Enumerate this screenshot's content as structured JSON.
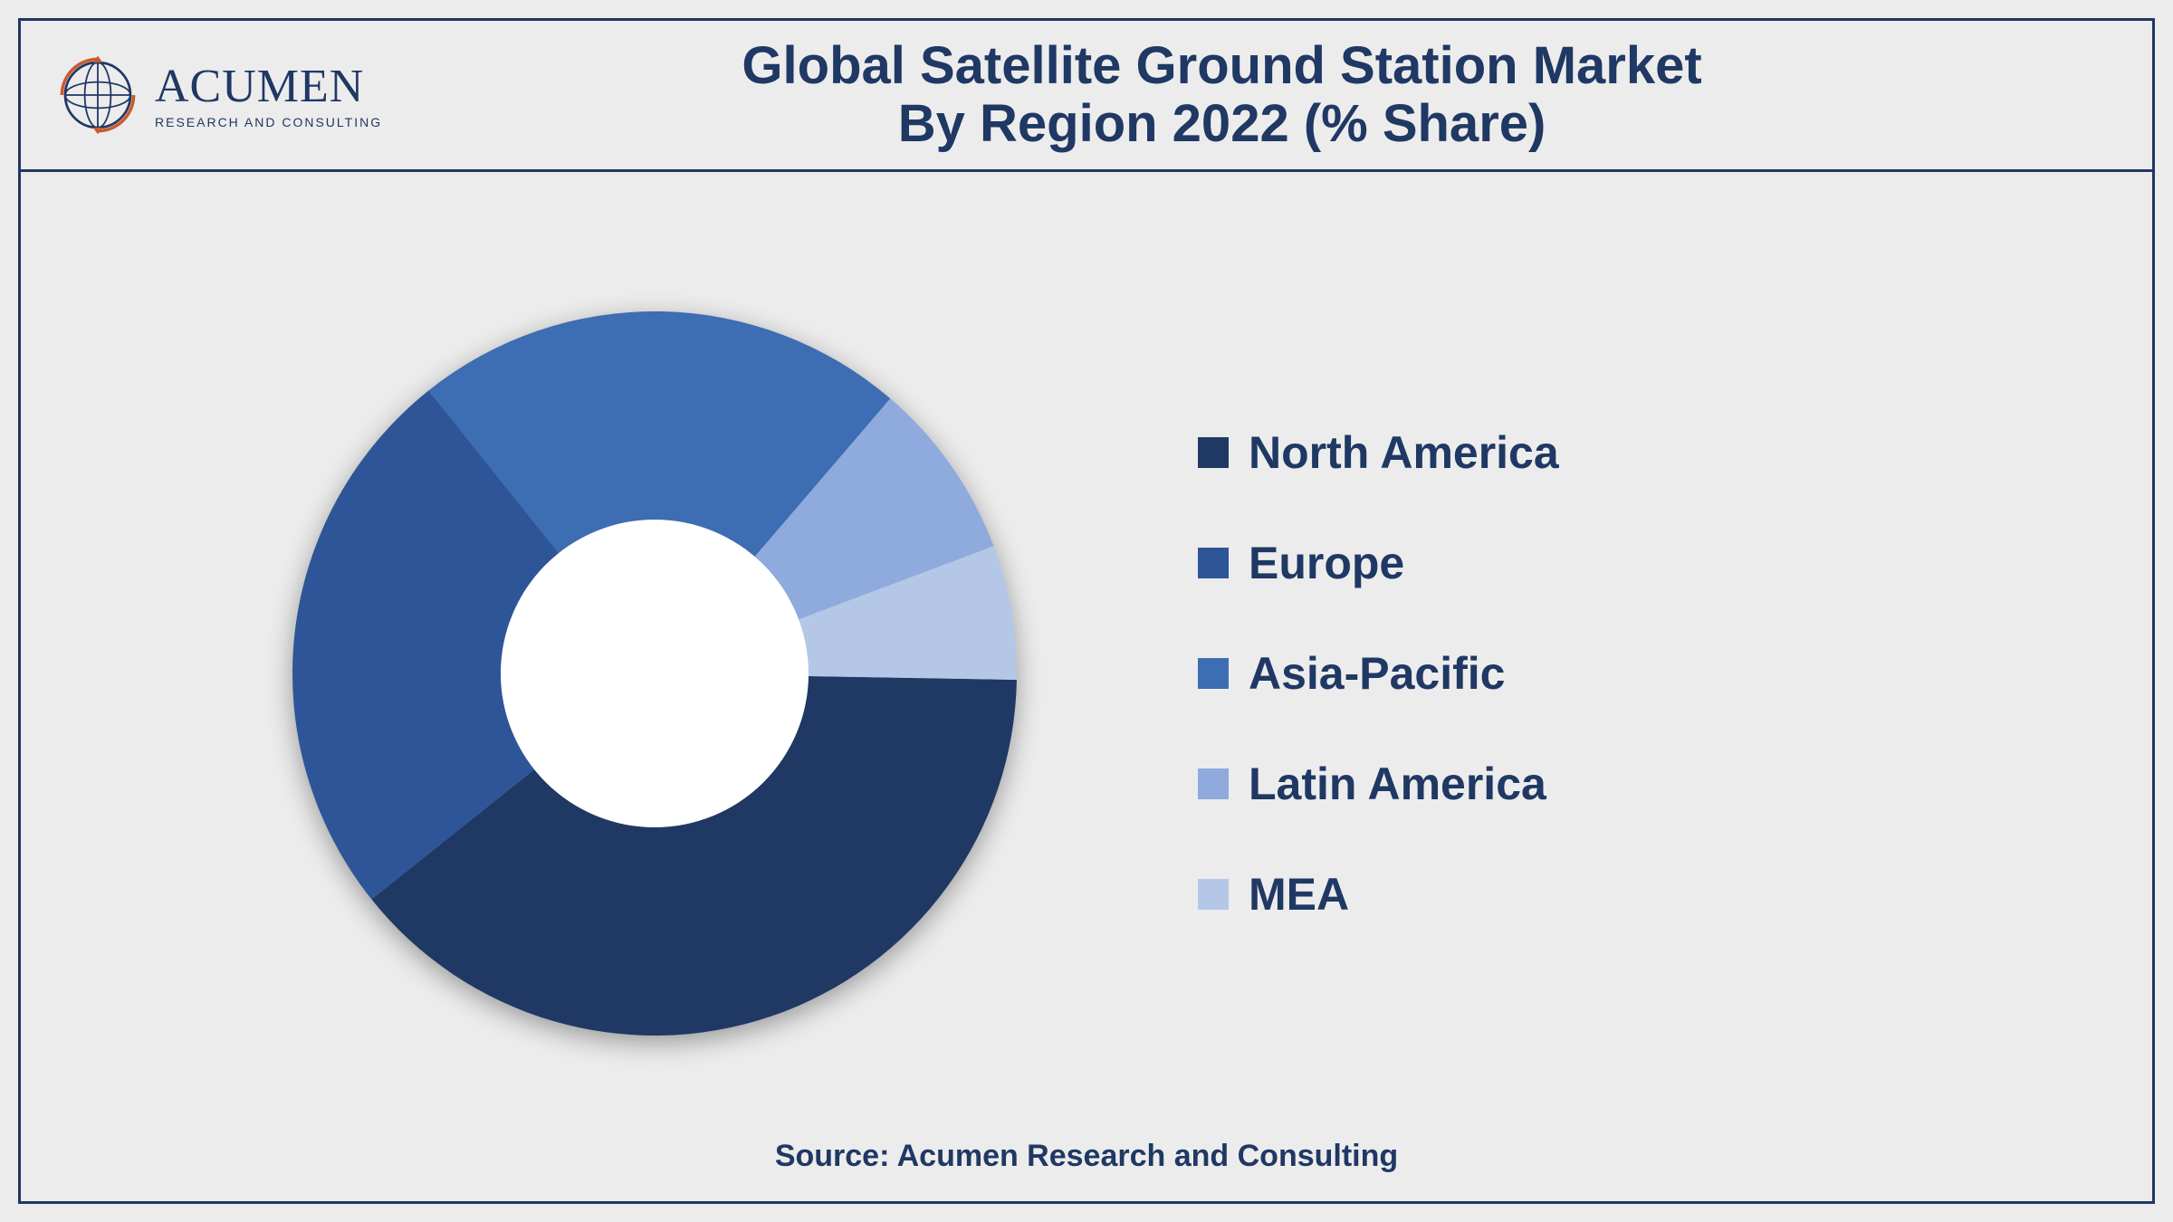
{
  "logo": {
    "brand": "ACUMEN",
    "tagline": "RESEARCH AND CONSULTING",
    "accent_color": "#c95a2f",
    "brand_color": "#1f3864"
  },
  "title": {
    "line1": "Global Satellite Ground Station Market",
    "line2": "By Region 2022 (% Share)",
    "color": "#1f3864",
    "fontsize": 58
  },
  "chart": {
    "type": "donut",
    "background_color": "#ececec",
    "outer_border_color": "#203864",
    "outer_radius": 400,
    "inner_radius": 170,
    "inner_fill": "#ffffff",
    "start_angle_deg": 91,
    "slices": [
      {
        "label": "North America",
        "value": 39,
        "color": "#203864"
      },
      {
        "label": "Europe",
        "value": 25,
        "color": "#2e5597"
      },
      {
        "label": "Asia-Pacific",
        "value": 22,
        "color": "#3d6db2"
      },
      {
        "label": "Latin America",
        "value": 8,
        "color": "#8faadc"
      },
      {
        "label": "MEA",
        "value": 6,
        "color": "#b4c7e7"
      }
    ]
  },
  "legend": {
    "fontsize": 50,
    "text_color": "#1f3864",
    "swatch_size": 34
  },
  "source": {
    "text": "Source: Acumen Research and Consulting",
    "color": "#1f3864",
    "fontsize": 34
  }
}
